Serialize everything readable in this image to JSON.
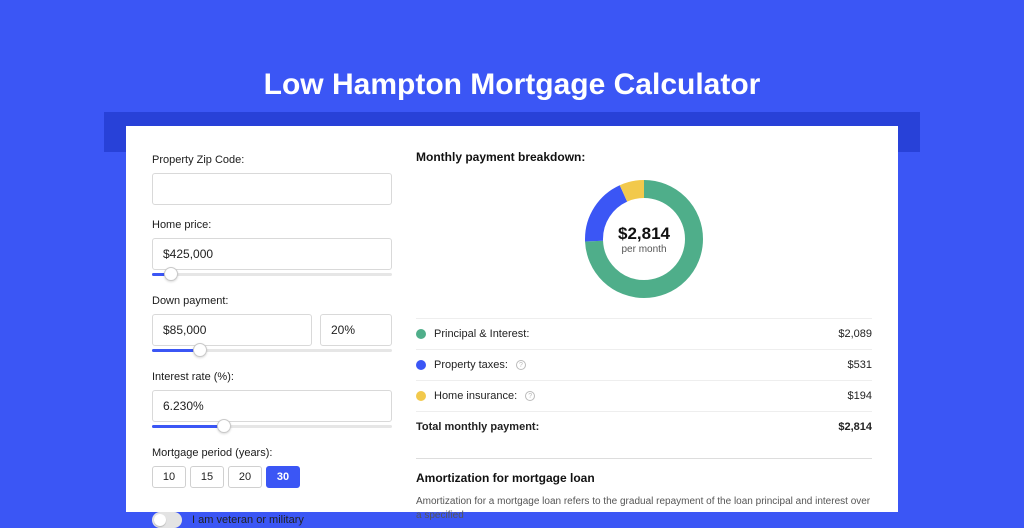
{
  "colors": {
    "page_bg": "#3b56f5",
    "shadow_bar": "#2841d8",
    "card_bg": "#ffffff",
    "input_border": "#d9d9d9",
    "text": "#1b1b1b"
  },
  "title": "Low Hampton Mortgage Calculator",
  "form": {
    "zip": {
      "label": "Property Zip Code:",
      "value": ""
    },
    "home_price": {
      "label": "Home price:",
      "value": "$425,000",
      "slider_pct": 8
    },
    "down_payment": {
      "label": "Down payment:",
      "value": "$85,000",
      "percent": "20%",
      "slider_pct": 20
    },
    "interest": {
      "label": "Interest rate (%):",
      "value": "6.230%",
      "slider_pct": 30
    },
    "period": {
      "label": "Mortgage period (years):",
      "options": [
        "10",
        "15",
        "20",
        "30"
      ],
      "selected": "30"
    },
    "veteran": {
      "label": "I am veteran or military",
      "checked": false
    }
  },
  "breakdown": {
    "title": "Monthly payment breakdown:",
    "donut": {
      "value": "$2,814",
      "sub": "per month",
      "slices": [
        {
          "key": "principal",
          "fraction": 0.742,
          "color": "#4fae8a"
        },
        {
          "key": "taxes",
          "fraction": 0.189,
          "color": "#3b56f5"
        },
        {
          "key": "insurance",
          "fraction": 0.069,
          "color": "#f2c94c"
        }
      ],
      "stroke_width": 18,
      "radius": 50
    },
    "items": [
      {
        "label": "Principal & Interest:",
        "value": "$2,089",
        "color": "#4fae8a",
        "info": false
      },
      {
        "label": "Property taxes:",
        "value": "$531",
        "color": "#3b56f5",
        "info": true
      },
      {
        "label": "Home insurance:",
        "value": "$194",
        "color": "#f2c94c",
        "info": true
      }
    ],
    "total": {
      "label": "Total monthly payment:",
      "value": "$2,814"
    }
  },
  "amort": {
    "title": "Amortization for mortgage loan",
    "body": "Amortization for a mortgage loan refers to the gradual repayment of the loan principal and interest over a specified"
  }
}
